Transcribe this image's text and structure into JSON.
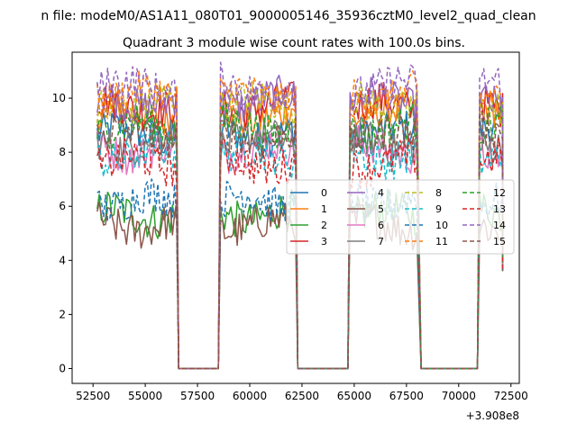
{
  "figure": {
    "suptitle": "n file: modeM0/AS1A11_080T01_9000005146_35936cztM0_level2_quad_clean",
    "title": "Quadrant 3 module wise count rates with 100.0s bins.",
    "x_offset_label": "+3.908e8"
  },
  "chart_data": {
    "type": "line",
    "title": "Quadrant 3 module wise count rates with 100.0s bins.",
    "xlabel": "",
    "ylabel": "",
    "xlim": [
      51500,
      72900
    ],
    "ylim": [
      -0.55,
      11.7
    ],
    "x_offset": 390800000,
    "xticks": [
      52500,
      55000,
      57500,
      60000,
      62500,
      65000,
      67500,
      70000,
      72500
    ],
    "xtick_labels": [
      "52500",
      "55000",
      "57500",
      "60000",
      "62500",
      "65000",
      "67500",
      "70000",
      "72500"
    ],
    "yticks": [
      0,
      2,
      4,
      6,
      8,
      10
    ],
    "ytick_labels": [
      "0",
      "2",
      "4",
      "6",
      "8",
      "10"
    ],
    "grid": false,
    "legend": {
      "position": "center-right",
      "ncol": 4
    },
    "segments": [
      {
        "start": 52700,
        "end": 56500,
        "fall_end": 56600
      },
      {
        "start": 58600,
        "end": 62200,
        "fall_end": 62300
      },
      {
        "start": 64800,
        "end": 68000,
        "fall_end": 68200
      },
      {
        "start": 71000,
        "end": 72100,
        "fall_end": 72100
      }
    ],
    "zero_value": 0,
    "series": [
      {
        "name": "0",
        "color": "#1f77b4",
        "dash": "solid",
        "level": 8.7
      },
      {
        "name": "1",
        "color": "#ff7f0e",
        "dash": "solid",
        "level": 9.4
      },
      {
        "name": "2",
        "color": "#2ca02c",
        "dash": "solid",
        "level": 5.7
      },
      {
        "name": "3",
        "color": "#d62728",
        "dash": "solid",
        "level": 9.7
      },
      {
        "name": "4",
        "color": "#9467bd",
        "dash": "solid",
        "level": 9.9
      },
      {
        "name": "5",
        "color": "#8c564b",
        "dash": "solid",
        "level": 5.3
      },
      {
        "name": "6",
        "color": "#e377c2",
        "dash": "solid",
        "level": 8.1
      },
      {
        "name": "7",
        "color": "#7f7f7f",
        "dash": "solid",
        "level": 8.4
      },
      {
        "name": "8",
        "color": "#bcbd22",
        "dash": "dashed",
        "level": 9.8
      },
      {
        "name": "9",
        "color": "#17becf",
        "dash": "dashed",
        "level": 7.9
      },
      {
        "name": "10",
        "color": "#1f77b4",
        "dash": "dashed",
        "level": 6.2
      },
      {
        "name": "11",
        "color": "#ff7f0e",
        "dash": "dashed",
        "level": 10.1
      },
      {
        "name": "12",
        "color": "#2ca02c",
        "dash": "dashed",
        "level": 8.9
      },
      {
        "name": "13",
        "color": "#d62728",
        "dash": "dashed",
        "level": 7.6
      },
      {
        "name": "14",
        "color": "#9467bd",
        "dash": "dashed",
        "level": 10.4
      },
      {
        "name": "15",
        "color": "#8c564b",
        "dash": "dashed",
        "level": 8.6
      }
    ]
  }
}
